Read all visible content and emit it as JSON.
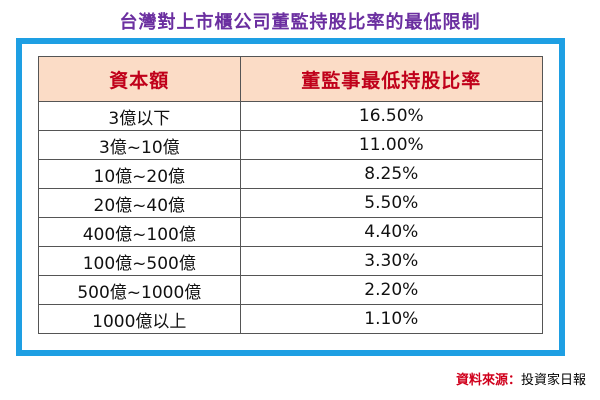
{
  "title": "台灣對上市櫃公司董監持股比率的最低限制",
  "table": {
    "headers": [
      "資本額",
      "董監事最低持股比率"
    ],
    "rows": [
      [
        "3億以下",
        "16.50%"
      ],
      [
        "3億~10億",
        "11.00%"
      ],
      [
        "10億~20億",
        "8.25%"
      ],
      [
        "20億~40億",
        "5.50%"
      ],
      [
        "400億~100億",
        "4.40%"
      ],
      [
        "100億~500億",
        "3.30%"
      ],
      [
        "500億~1000億",
        "2.20%"
      ],
      [
        "1000億以上",
        "1.10%"
      ]
    ]
  },
  "source": {
    "label": "資料來源",
    "separator": "：",
    "name": "投資家日報"
  },
  "colors": {
    "title": "#6b2fa0",
    "frame_border": "#1e9fe3",
    "header_bg": "#fbdcc6",
    "header_text": "#c0001a",
    "source_label": "#d0001c"
  }
}
